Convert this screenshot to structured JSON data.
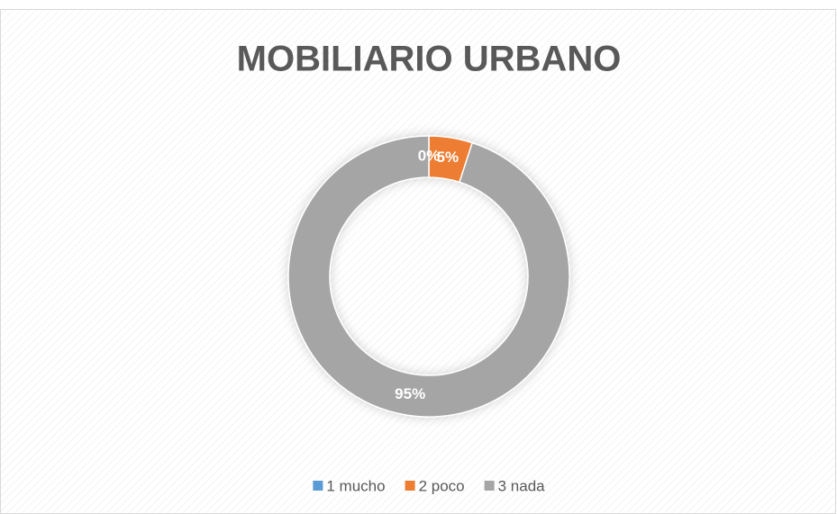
{
  "chart_data": {
    "type": "pie",
    "title": "MOBILIARIO URBANO",
    "categories": [
      "1 mucho",
      "2 poco",
      "3 nada"
    ],
    "values": [
      0,
      5,
      95
    ],
    "value_labels": [
      "0%",
      "5%",
      "95%"
    ],
    "colors": [
      "#5b9bd5",
      "#ed7d31",
      "#a5a5a5"
    ],
    "donut": true,
    "legend": "bottom"
  }
}
